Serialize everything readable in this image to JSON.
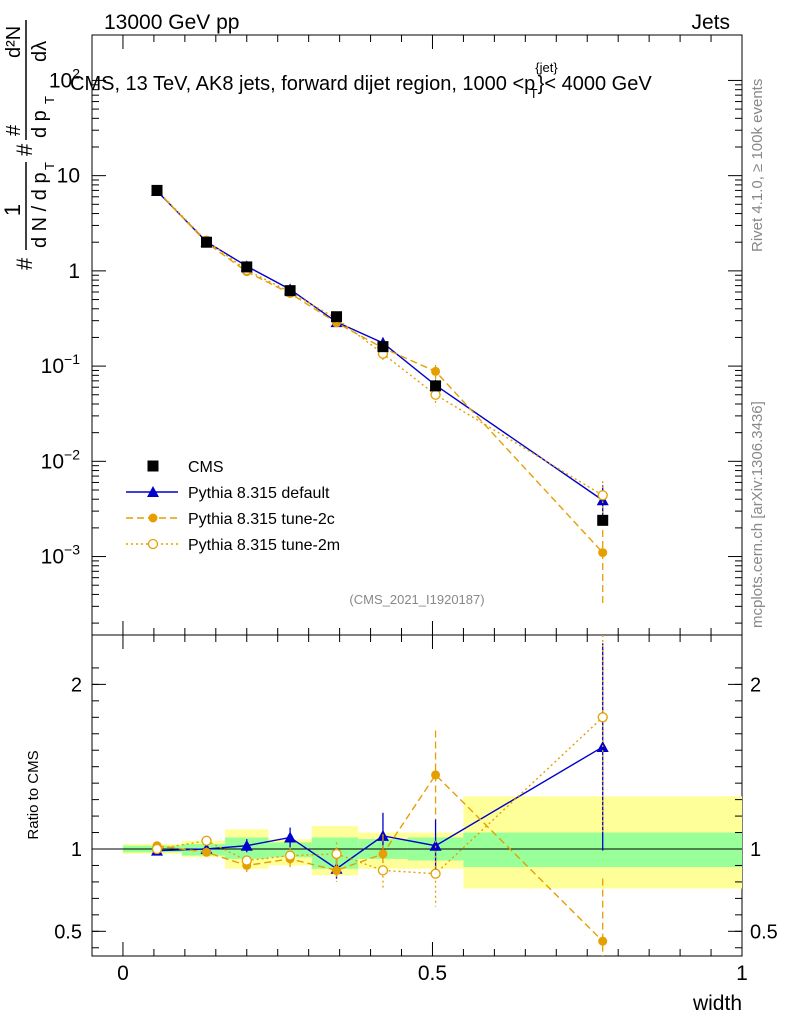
{
  "header": {
    "energy_label": "13000 GeV pp",
    "category_label": "Jets",
    "plot_title": "CMS, 13 TeV, AK8 jets, forward dijet region, 1000 <p",
    "title_sup": "{jet}",
    "title_sub": "T",
    "title_tail": "}< 4000 GeV",
    "side_label_top": "Rivet 4.1.0, ≥ 100k events",
    "side_label_bottom": "mcplots.cern.ch [arXiv:1306.3436]",
    "analysis_id": "(CMS_2021_I1920187)"
  },
  "axis_labels": {
    "main_ylabel": "1/(dN/dp_T) d²N/dp_T dλ",
    "ylabel_hash": "#",
    "ylabel_one": "1",
    "ylabel_dn": "d N / d p",
    "ylabel_t": "T",
    "ylabel_hash2": "#",
    "ylabel_d2n": "d²N",
    "ylabel_dp": "d p",
    "ylabel_dl": "dλ",
    "ylabel_t2": "T",
    "ratio_ylabel": "Ratio to CMS",
    "xlabel": "width"
  },
  "legend": [
    {
      "name": "CMS",
      "marker": "square",
      "color": "#000000",
      "dash": "none"
    },
    {
      "name": "Pythia 8.315 default",
      "marker": "triangle",
      "color": "#0000cc",
      "dash": "none"
    },
    {
      "name": "Pythia 8.315 tune-2c",
      "marker": "circle",
      "color": "#e69f00",
      "dash": "dashed"
    },
    {
      "name": "Pythia 8.315 tune-2m",
      "marker": "open-circle",
      "color": "#e69f00",
      "dash": "dotted"
    }
  ],
  "chart_data": [
    {
      "type": "scatter",
      "name": "main",
      "log_y": true,
      "xlim": [
        -0.05,
        1.0
      ],
      "ylim": [
        0.00015,
        300
      ],
      "y_ticks": [
        {
          "value": 0.001,
          "base": "10",
          "exp": "−3"
        },
        {
          "value": 0.01,
          "base": "10",
          "exp": "−2"
        },
        {
          "value": 0.1,
          "base": "10",
          "exp": "−1"
        },
        {
          "value": 1,
          "base": "1",
          "exp": ""
        },
        {
          "value": 10,
          "base": "10",
          "exp": ""
        },
        {
          "value": 100,
          "base": "10",
          "exp": "2"
        }
      ],
      "x": [
        0.055,
        0.135,
        0.2,
        0.27,
        0.345,
        0.42,
        0.505,
        0.775
      ],
      "series": [
        {
          "name": "CMS",
          "values": [
            7.0,
            2.0,
            1.1,
            0.62,
            0.33,
            0.16,
            0.062,
            0.0024
          ]
        },
        {
          "name": "Pythia 8.315 default",
          "values": [
            6.9,
            2.02,
            1.12,
            0.64,
            0.29,
            0.175,
            0.063,
            0.0039
          ],
          "err": [
            0,
            0,
            0,
            0,
            0,
            0.025,
            0,
            0.0017
          ]
        },
        {
          "name": "Pythia 8.315 tune-2c",
          "values": [
            7.0,
            1.98,
            0.98,
            0.58,
            0.285,
            0.155,
            0.088,
            0.0011
          ],
          "err": [
            0,
            0,
            0,
            0,
            0,
            0.02,
            0.015,
            0.0008
          ]
        },
        {
          "name": "Pythia 8.315 tune-2m",
          "values": [
            7.0,
            2.07,
            1.02,
            0.6,
            0.315,
            0.135,
            0.05,
            0.0044
          ],
          "err": [
            0,
            0,
            0,
            0,
            0,
            0.02,
            0.012,
            0.0018
          ]
        }
      ]
    },
    {
      "type": "scatter",
      "name": "ratio",
      "xlim": [
        -0.05,
        1.0
      ],
      "ylim": [
        0.35,
        2.3
      ],
      "y_ticks": [
        0.5,
        1,
        2
      ],
      "x_ticks": [
        {
          "value": 0,
          "label": "0"
        },
        {
          "value": 0.5,
          "label": "0.5"
        },
        {
          "value": 1,
          "label": "1"
        }
      ],
      "bands": [
        {
          "x0": 0.0,
          "x1": 0.095,
          "inner": [
            0.98,
            1.02
          ],
          "outer": [
            0.97,
            1.03
          ]
        },
        {
          "x0": 0.095,
          "x1": 0.165,
          "inner": [
            0.96,
            1.03
          ],
          "outer": [
            0.95,
            1.05
          ]
        },
        {
          "x0": 0.165,
          "x1": 0.235,
          "inner": [
            0.94,
            1.07
          ],
          "outer": [
            0.88,
            1.12
          ]
        },
        {
          "x0": 0.235,
          "x1": 0.305,
          "inner": [
            0.95,
            1.04
          ],
          "outer": [
            0.9,
            1.06
          ]
        },
        {
          "x0": 0.305,
          "x1": 0.38,
          "inner": [
            0.88,
            1.07
          ],
          "outer": [
            0.84,
            1.14
          ]
        },
        {
          "x0": 0.38,
          "x1": 0.46,
          "inner": [
            0.94,
            1.06
          ],
          "outer": [
            0.88,
            1.1
          ]
        },
        {
          "x0": 0.46,
          "x1": 0.55,
          "inner": [
            0.93,
            1.07
          ],
          "outer": [
            0.88,
            1.1
          ]
        },
        {
          "x0": 0.55,
          "x1": 1.0,
          "inner": [
            0.89,
            1.1
          ],
          "outer": [
            0.76,
            1.32
          ]
        }
      ],
      "x": [
        0.055,
        0.135,
        0.2,
        0.27,
        0.345,
        0.42,
        0.505,
        0.775
      ],
      "series": [
        {
          "name": "Pythia 8.315 default",
          "values": [
            0.99,
            1.0,
            1.02,
            1.07,
            0.88,
            1.08,
            1.02,
            1.62
          ],
          "err": [
            0,
            0.02,
            0.04,
            0.06,
            0.06,
            0.14,
            0.16,
            0.63
          ]
        },
        {
          "name": "Pythia 8.315 tune-2c",
          "values": [
            1.02,
            0.98,
            0.9,
            0.94,
            0.87,
            0.97,
            1.45,
            0.44
          ],
          "err": [
            0,
            0.03,
            0.04,
            0.05,
            0.07,
            0.12,
            0.27,
            0.38
          ]
        },
        {
          "name": "Pythia 8.315 tune-2m",
          "values": [
            1.0,
            1.05,
            0.93,
            0.96,
            0.97,
            0.87,
            0.85,
            1.8
          ],
          "err": [
            0,
            0.02,
            0.03,
            0.05,
            0.07,
            0.12,
            0.2,
            0.7
          ]
        }
      ]
    }
  ]
}
